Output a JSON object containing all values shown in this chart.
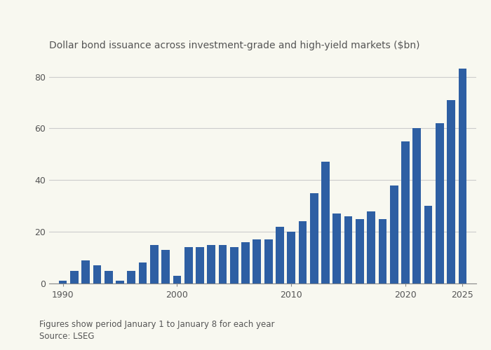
{
  "title": "Dollar bond issuance across investment-grade and high-yield markets ($bn)",
  "years": [
    1990,
    1991,
    1992,
    1993,
    1994,
    1995,
    1996,
    1997,
    1998,
    1999,
    2000,
    2001,
    2002,
    2003,
    2004,
    2005,
    2006,
    2007,
    2008,
    2009,
    2010,
    2011,
    2012,
    2013,
    2014,
    2015,
    2016,
    2017,
    2018,
    2019,
    2020,
    2021,
    2022,
    2023,
    2024,
    2025
  ],
  "values": [
    1,
    5,
    9,
    7,
    5,
    1,
    5,
    8,
    15,
    13,
    3,
    14,
    14,
    15,
    15,
    14,
    16,
    17,
    17,
    22,
    20,
    24,
    35,
    47,
    27,
    26,
    25,
    28,
    25,
    38,
    55,
    60,
    30,
    62,
    71,
    83
  ],
  "bar_color": "#2E5FA3",
  "background_color": "#F8F8F0",
  "footnote1": "Figures show period January 1 to January 8 for each year",
  "footnote2": "Source: LSEG",
  "ylim": [
    0,
    88
  ],
  "yticks": [
    0,
    20,
    40,
    60,
    80
  ],
  "xticks": [
    1990,
    2000,
    2010,
    2020,
    2025
  ],
  "grid_color": "#CCCCCC",
  "title_fontsize": 10,
  "footnote_fontsize": 8.5,
  "tick_fontsize": 9,
  "title_color": "#555555",
  "tick_color": "#555555",
  "footnote_color": "#555555"
}
